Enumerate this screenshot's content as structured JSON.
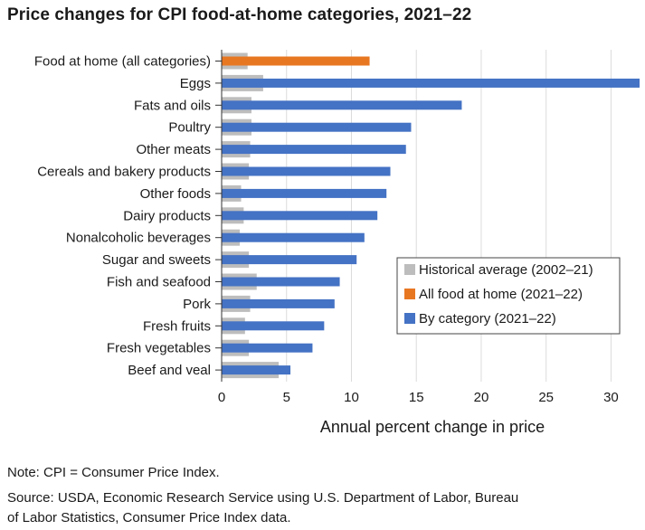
{
  "title": "Price changes for CPI food-at-home categories, 2021–22",
  "note": "Note: CPI = Consumer Price Index.",
  "source_line1": "Source: USDA, Economic Research Service using U.S. Department of Labor, Bureau",
  "source_line2": "of Labor Statistics, Consumer Price Index data.",
  "chart_data": {
    "type": "bar",
    "orientation": "horizontal",
    "title": "Price changes for CPI food-at-home categories, 2021–22",
    "xlabel": "Annual percent change in price",
    "ylabel": "",
    "xlim": [
      0,
      32.2
    ],
    "xticks": [
      0,
      5,
      10,
      15,
      20,
      25,
      30
    ],
    "grid": true,
    "legend_position": "right",
    "categories": [
      "Food at home (all categories)",
      "Eggs",
      "Fats and oils",
      "Poultry",
      "Other meats",
      "Cereals and bakery products",
      "Other foods",
      "Dairy products",
      "Nonalcoholic beverages",
      "Sugar and sweets",
      "Fish and seafood",
      "Pork",
      "Fresh fruits",
      "Fresh vegetables",
      "Beef and veal"
    ],
    "series": [
      {
        "name": "Historical average (2002–21)",
        "color": "#bdbdbd",
        "values": [
          2.0,
          3.2,
          2.3,
          2.3,
          2.2,
          2.1,
          1.5,
          1.7,
          1.4,
          2.1,
          2.7,
          2.2,
          1.8,
          2.1,
          4.4
        ]
      },
      {
        "name": "All food at home (2021–22)",
        "color": "#e87722",
        "values": [
          11.4,
          null,
          null,
          null,
          null,
          null,
          null,
          null,
          null,
          null,
          null,
          null,
          null,
          null,
          null
        ]
      },
      {
        "name": "By category (2021–22)",
        "color": "#4472c4",
        "values": [
          null,
          32.2,
          18.5,
          14.6,
          14.2,
          13.0,
          12.7,
          12.0,
          11.0,
          10.4,
          9.1,
          8.7,
          7.9,
          7.0,
          5.3
        ]
      }
    ]
  }
}
